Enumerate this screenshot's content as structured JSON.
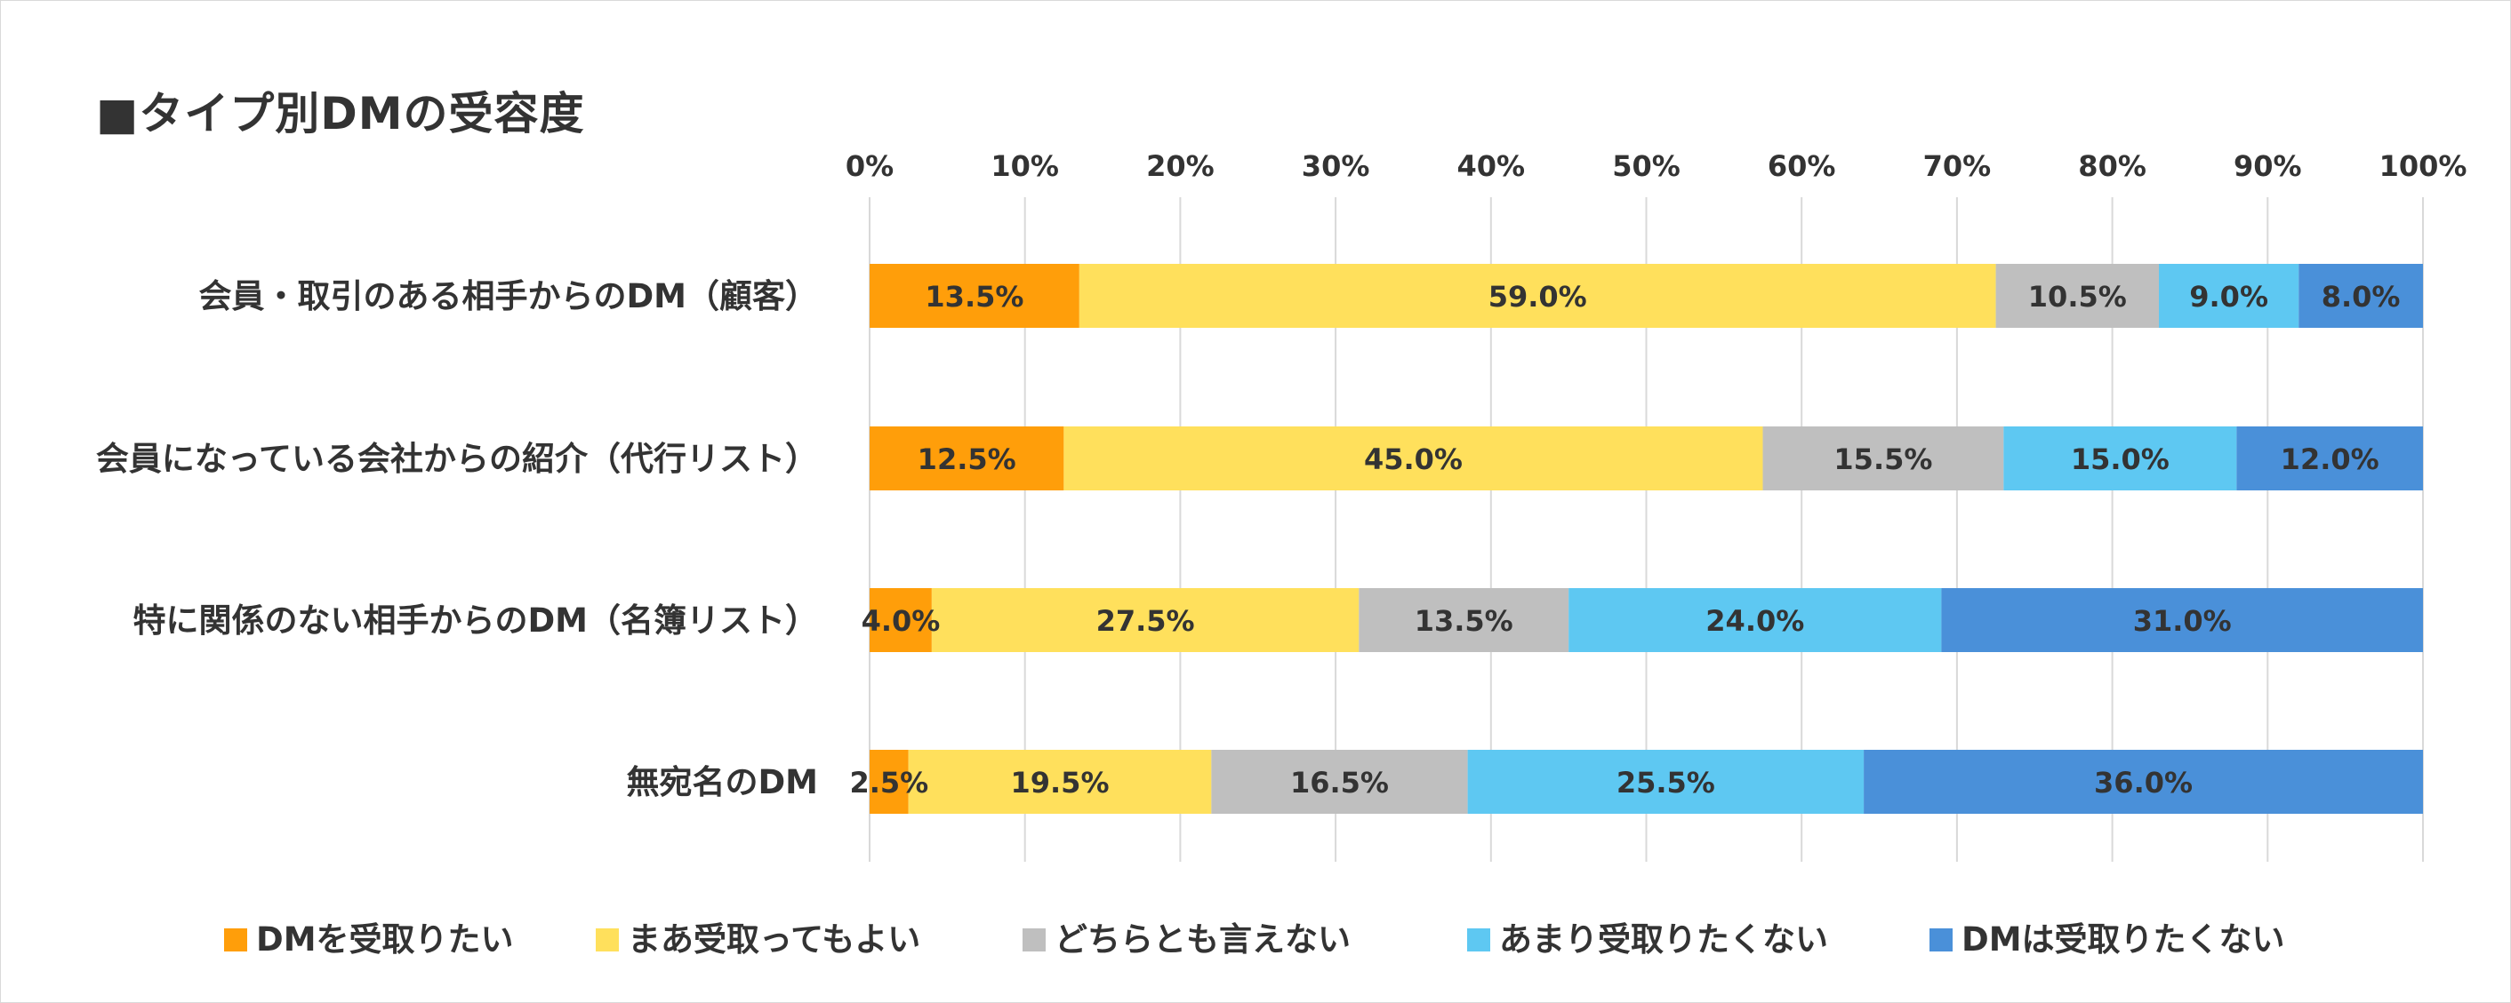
{
  "chart_data": {
    "type": "bar",
    "orientation": "horizontal",
    "stacked": true,
    "title": "■タイプ別DMの受容度",
    "xlim": [
      0,
      100
    ],
    "x_ticks": [
      "0%",
      "10%",
      "20%",
      "30%",
      "40%",
      "50%",
      "60%",
      "70%",
      "80%",
      "90%",
      "100%"
    ],
    "x_axis_position": "top",
    "grid": true,
    "legend_position": "bottom",
    "categories": [
      "会員・取引のある相手からのDM（顧客）",
      "会員になっている会社からの紹介（代行リスト）",
      "特に関係のない相手からのDM（名簿リスト）",
      "無宛名のDM"
    ],
    "series": [
      {
        "name": "DMを受取りたい",
        "color": "#FF9E0A",
        "values": [
          13.5,
          12.5,
          4.0,
          2.5
        ],
        "labels": [
          "13.5%",
          "12.5%",
          "4.0%",
          "2.5%"
        ]
      },
      {
        "name": "まあ受取ってもよい",
        "color": "#FFE05C",
        "values": [
          59.0,
          45.0,
          27.5,
          19.5
        ],
        "labels": [
          "59.0%",
          "45.0%",
          "27.5%",
          "19.5%"
        ]
      },
      {
        "name": "どちらとも言えない",
        "color": "#BFBFBF",
        "values": [
          10.5,
          15.5,
          13.5,
          16.5
        ],
        "labels": [
          "10.5%",
          "15.5%",
          "13.5%",
          "16.5%"
        ]
      },
      {
        "name": "あまり受取りたくない",
        "color": "#5EC8F2",
        "values": [
          9.0,
          15.0,
          24.0,
          25.5
        ],
        "labels": [
          "9.0%",
          "15.0%",
          "24.0%",
          "25.5%"
        ]
      },
      {
        "name": "DMは受取りたくない",
        "color": "#4A90D9",
        "values": [
          8.0,
          12.0,
          31.0,
          36.0
        ],
        "labels": [
          "8.0%",
          "12.0%",
          "31.0%",
          "36.0%"
        ]
      }
    ]
  }
}
